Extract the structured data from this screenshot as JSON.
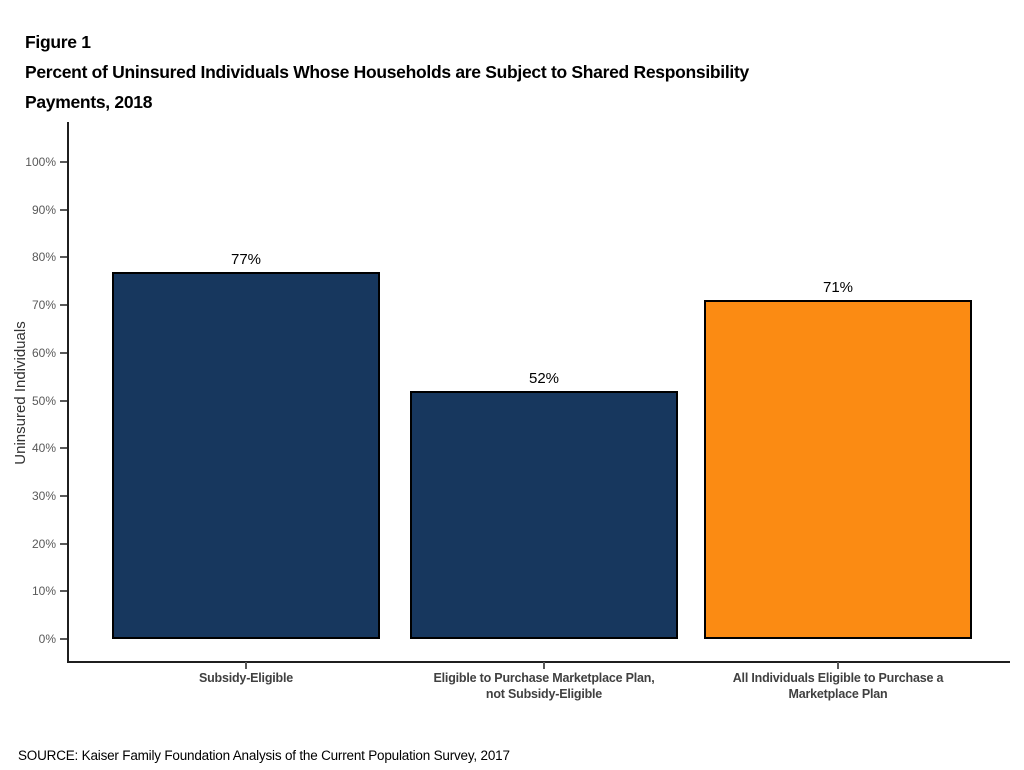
{
  "figure": {
    "label": "Figure 1",
    "title_line1": "Percent of Uninsured Individuals Whose Households are Subject to Shared Responsibility",
    "title_line2": "Payments, 2018"
  },
  "source": "SOURCE: Kaiser Family Foundation Analysis of the Current Population Survey, 2017",
  "chart_data": {
    "type": "bar",
    "title": "Percent of Uninsured Individuals Whose Households are Subject to Shared Responsibility Payments, 2018",
    "categories": [
      "Subsidy-Eligible",
      "Eligible to Purchase Marketplace Plan,\nnot Subsidy-Eligible",
      "All Individuals Eligible to Purchase a\nMarketplace Plan"
    ],
    "values": [
      77,
      52,
      71
    ],
    "value_labels": [
      "77%",
      "52%",
      "71%"
    ],
    "bar_colors": [
      "#17375E",
      "#17375E",
      "#FB8B13"
    ],
    "xlabel": "",
    "ylabel": "Uninsured Individuals",
    "ylim": [
      0,
      100
    ],
    "ytick_step": 10,
    "yticks": [
      "0%",
      "10%",
      "20%",
      "30%",
      "40%",
      "50%",
      "60%",
      "70%",
      "80%",
      "90%",
      "100%"
    ],
    "grid": false,
    "legend": "none",
    "colors": {
      "navy": "#17375E",
      "orange": "#FB8B13",
      "axis": "#1f1f1f",
      "tick_text": "#595959",
      "category_text": "#404040"
    }
  }
}
